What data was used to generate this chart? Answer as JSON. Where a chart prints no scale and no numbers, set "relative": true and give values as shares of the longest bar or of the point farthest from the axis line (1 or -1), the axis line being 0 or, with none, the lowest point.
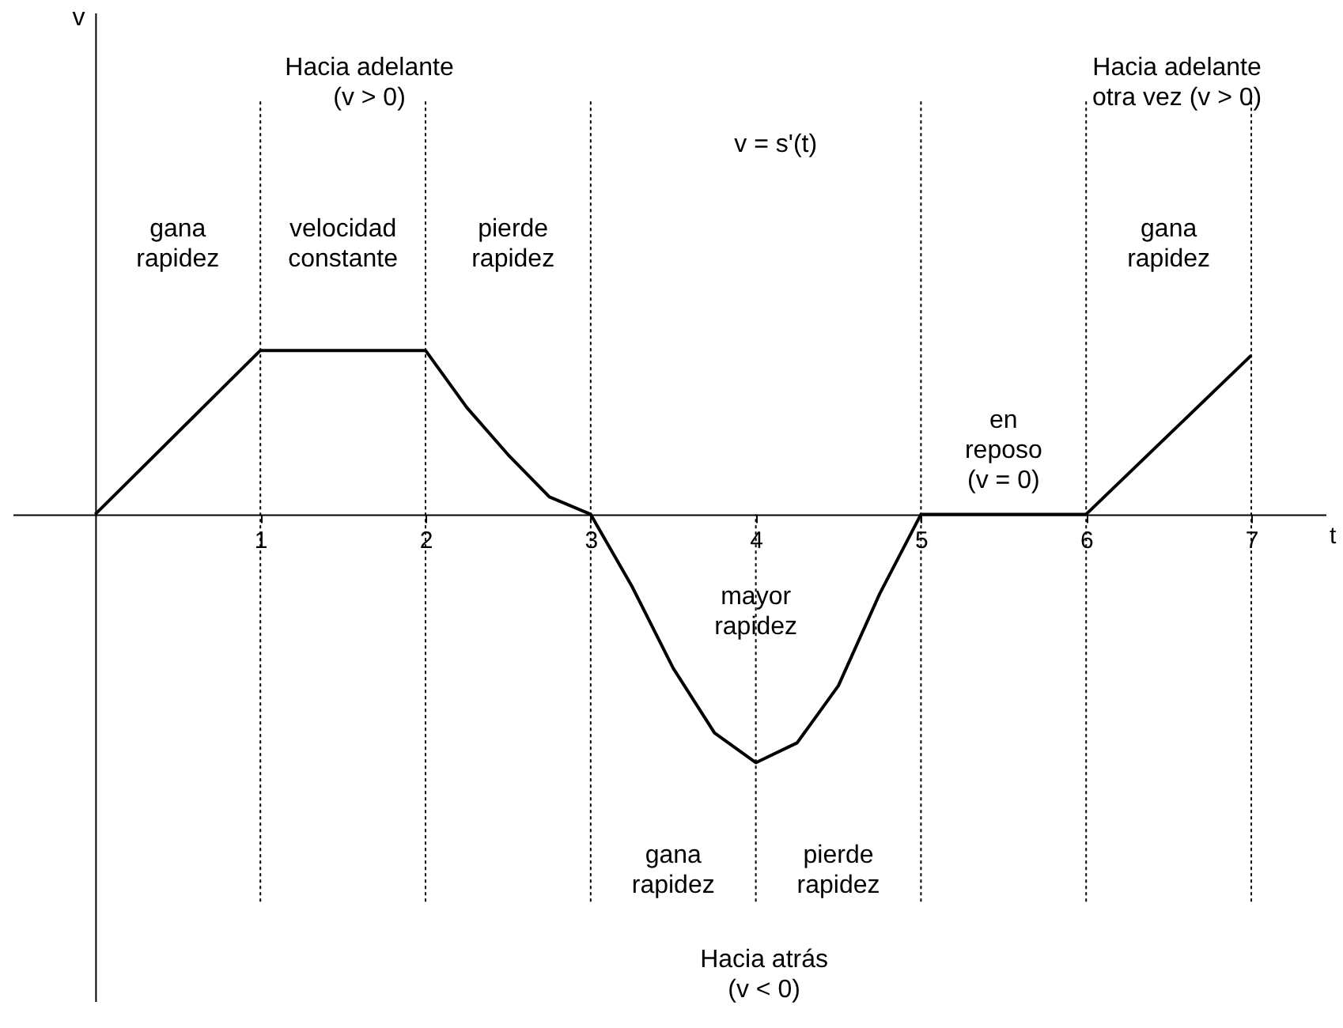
{
  "chart_data": {
    "type": "line",
    "relative": true,
    "xlabel": "t",
    "x": [
      0,
      1,
      2,
      2.25,
      2.5,
      2.75,
      3,
      3.25,
      3.5,
      3.75,
      4,
      4.25,
      4.5,
      4.75,
      5,
      6,
      7
    ],
    "series": [
      {
        "color": "#000000",
        "values": [
          0,
          0.66,
          0.66,
          0.43,
          0.24,
          0.07,
          0,
          -0.29,
          -0.62,
          -0.88,
          -1,
          -0.92,
          -0.69,
          -0.32,
          0,
          0,
          0.64
        ]
      }
    ],
    "xlim": [
      -0.5,
      7.45
    ],
    "xticks": [
      1,
      2,
      3,
      4,
      5,
      6,
      7
    ],
    "marker": "none",
    "line_style": "solid",
    "ref_lines": [
      {
        "axis": "x",
        "value": 1,
        "line_style": "dotted"
      },
      {
        "axis": "x",
        "value": 2,
        "line_style": "dotted"
      },
      {
        "axis": "x",
        "value": 3,
        "line_style": "dotted"
      },
      {
        "axis": "x",
        "value": 4,
        "line_style": "dotted"
      },
      {
        "axis": "x",
        "value": 5,
        "line_style": "dotted"
      },
      {
        "axis": "x",
        "value": 6,
        "line_style": "dotted"
      },
      {
        "axis": "x",
        "value": 7,
        "line_style": "dotted"
      }
    ],
    "annotations": [
      "Hacia  adelante\n(v > 0)",
      "v = s'(t)",
      "Hacia adelante\notra vez   (v > 0)",
      "gana\nrapidez",
      "velocidad\nconstante",
      "pierde\nrapidez",
      "gana\nrapidez",
      "en\nreposo\n(v = 0)",
      "mayor\nrapidez",
      "gana\nrapidez",
      "pierde\nrapidez",
      "Hacia atrás\n(v < 0)",
      "v"
    ]
  }
}
